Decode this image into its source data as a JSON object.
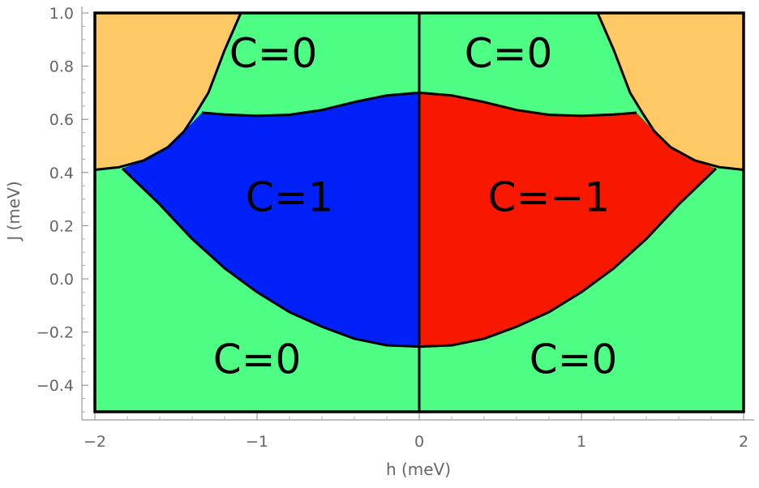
{
  "chart_data": {
    "type": "phase-diagram",
    "title": "",
    "xlabel": "h (meV)",
    "ylabel": "J (meV)",
    "xlim": [
      -2,
      2
    ],
    "ylim": [
      -0.5,
      1.0
    ],
    "x_ticks": [
      -2,
      -1,
      0,
      1,
      2
    ],
    "x_tick_labels": [
      "−2",
      "−1",
      "0",
      "1",
      "2"
    ],
    "y_ticks": [
      -0.4,
      -0.2,
      0.0,
      0.2,
      0.4,
      0.6,
      0.8,
      1.0
    ],
    "y_tick_labels": [
      "−0.4",
      "−0.2",
      "0.0",
      "0.2",
      "0.4",
      "0.6",
      "0.8",
      "1.0"
    ],
    "colors": {
      "trivial": "#4dfd84",
      "c_plus_one": "#0020f8",
      "c_minus_one": "#f81800",
      "corner": "#ffc966"
    },
    "boundaries": {
      "lower_arc": [
        [
          0,
          -0.255
        ],
        [
          0.2,
          -0.25
        ],
        [
          0.4,
          -0.225
        ],
        [
          0.6,
          -0.18
        ],
        [
          0.8,
          -0.125
        ],
        [
          1.0,
          -0.05
        ],
        [
          1.2,
          0.04
        ],
        [
          1.4,
          0.15
        ],
        [
          1.6,
          0.28
        ],
        [
          1.83,
          0.415
        ]
      ],
      "upper_wave": [
        [
          0,
          0.7
        ],
        [
          0.2,
          0.69
        ],
        [
          0.4,
          0.665
        ],
        [
          0.6,
          0.635
        ],
        [
          0.8,
          0.617
        ],
        [
          1.0,
          0.613
        ],
        [
          1.2,
          0.618
        ],
        [
          1.34,
          0.625
        ]
      ],
      "corner_curve": [
        [
          1.1,
          1.0
        ],
        [
          1.2,
          0.86
        ],
        [
          1.3,
          0.7
        ],
        [
          1.38,
          0.62
        ],
        [
          1.45,
          0.555
        ],
        [
          1.55,
          0.495
        ],
        [
          1.7,
          0.445
        ],
        [
          1.85,
          0.42
        ],
        [
          2.0,
          0.41
        ]
      ]
    },
    "regions": [
      {
        "label": "C=0",
        "x": -0.9,
        "y": 0.85
      },
      {
        "label": "C=0",
        "x": 0.55,
        "y": 0.85
      },
      {
        "label": "C=1",
        "x": -0.8,
        "y": 0.31
      },
      {
        "label": "C=−1",
        "x": 0.8,
        "y": 0.31
      },
      {
        "label": "C=0",
        "x": -1.0,
        "y": -0.3
      },
      {
        "label": "C=0",
        "x": 0.95,
        "y": -0.3
      }
    ]
  }
}
